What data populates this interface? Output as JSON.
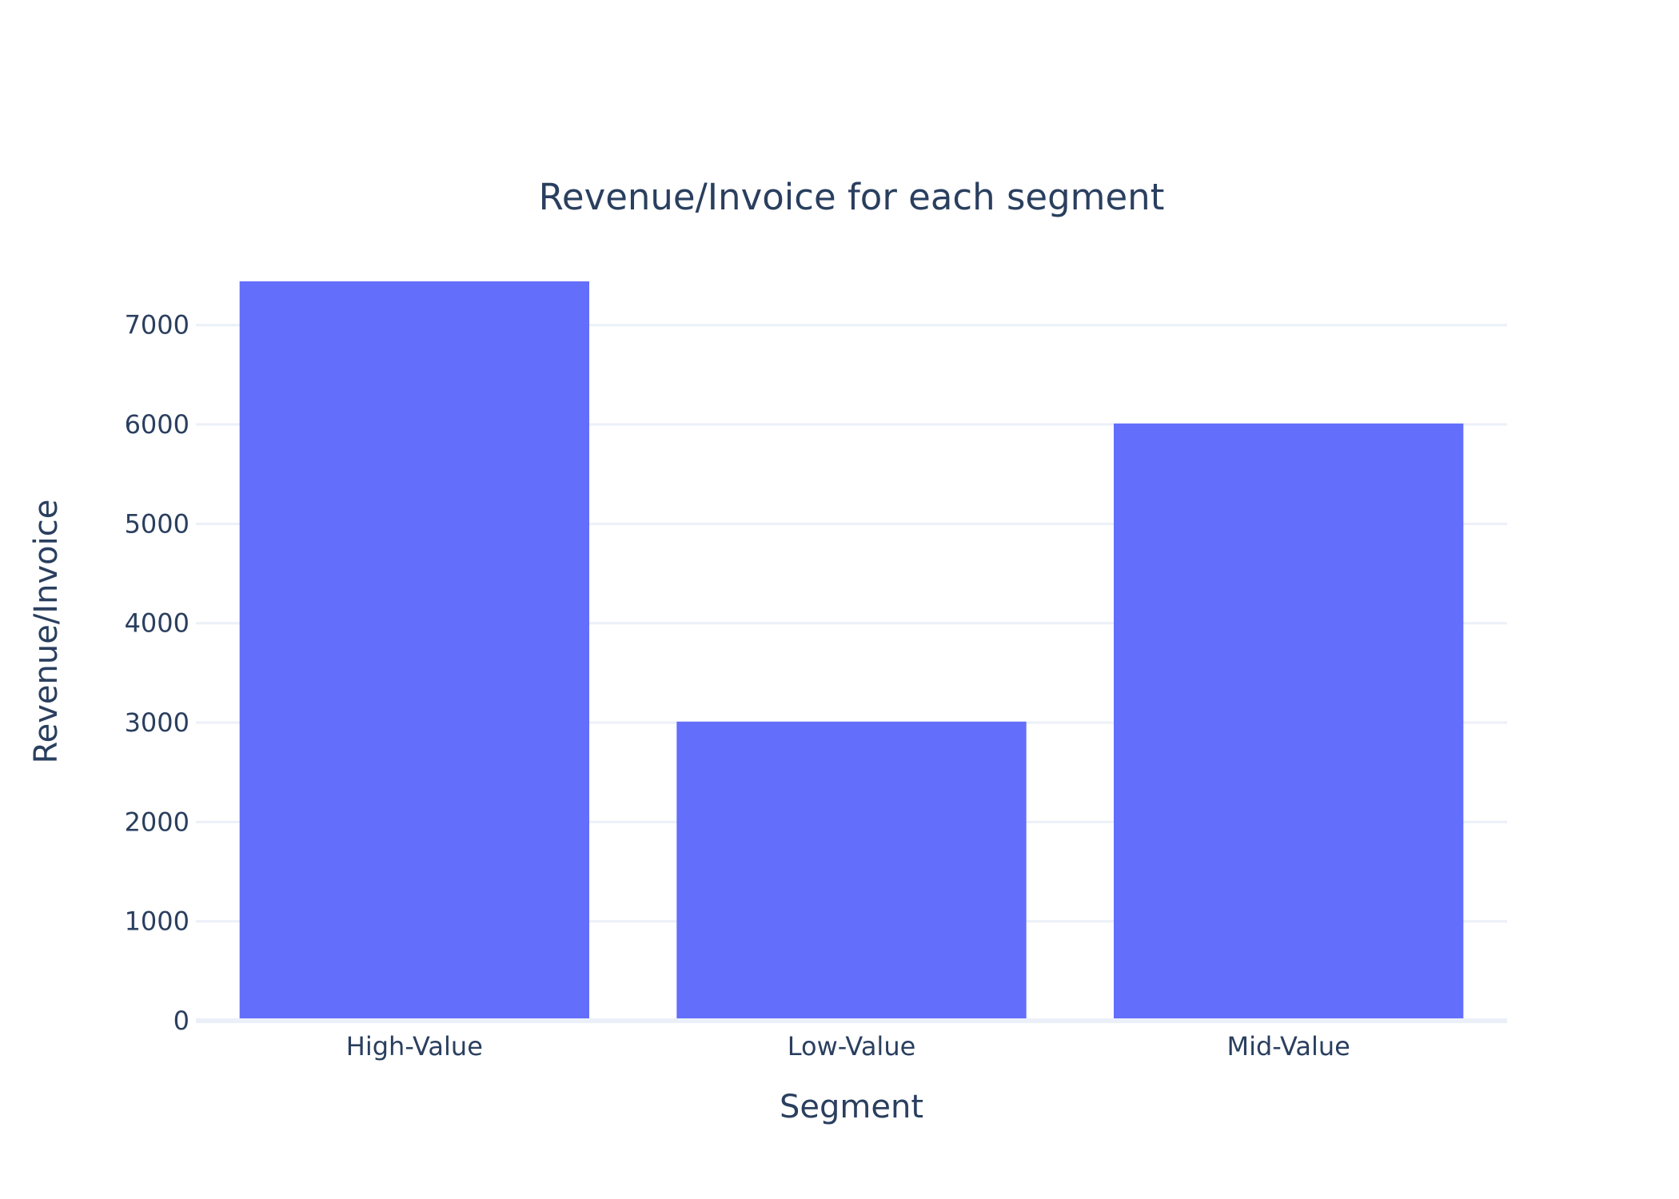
{
  "chart_data": {
    "type": "bar",
    "title": "Revenue/Invoice for each segment",
    "xlabel": "Segment",
    "ylabel": "Revenue/Invoice",
    "categories": [
      "High-Value",
      "Low-Value",
      "Mid-Value"
    ],
    "values": [
      7440,
      3010,
      6010
    ],
    "yticks": [
      0,
      1000,
      2000,
      3000,
      4000,
      5000,
      6000,
      7000
    ],
    "ylim": [
      0,
      7440
    ],
    "grid": true,
    "legend": "none",
    "colors": {
      "bar": "#636efa",
      "text": "#2a3f5f",
      "grid": "#ebf0f8",
      "background": "#ffffff"
    }
  }
}
